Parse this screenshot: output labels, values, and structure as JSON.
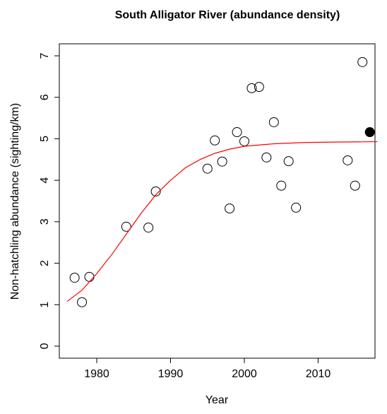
{
  "chart_data": {
    "type": "scatter",
    "title": "South Alligator River (abundance density)",
    "x_label": "Year",
    "y_label": "Non-hatchling abundance (sighting/km)",
    "xlim": [
      1974.93,
      2017.7
    ],
    "ylim": [
      -0.29,
      7.29
    ],
    "xticks": [
      1980,
      1990,
      2000,
      2010
    ],
    "yticks": [
      0,
      1,
      2,
      3,
      4,
      5,
      6,
      7
    ],
    "series": [
      {
        "color": "#000000",
        "filled": false,
        "x": [
          1977,
          1978,
          1979,
          1984,
          1987,
          1988,
          1995,
          1996,
          1997,
          1998,
          1999,
          2000,
          2001,
          2002,
          2003,
          2004,
          2005,
          2006,
          2007,
          2014,
          2015,
          2016
        ],
        "values": [
          1.65,
          1.06,
          1.67,
          2.88,
          2.86,
          3.73,
          4.28,
          4.96,
          4.45,
          3.32,
          5.16,
          4.94,
          6.22,
          6.25,
          4.55,
          5.4,
          3.87,
          4.46,
          3.34,
          4.48,
          3.87,
          6.85
        ]
      },
      {
        "color": "#000000",
        "filled": true,
        "x": [
          2017
        ],
        "values": [
          5.16
        ]
      },
      {
        "type": "line",
        "color": "#ff0000",
        "x": [
          1976,
          1978,
          1980,
          1982,
          1984,
          1986,
          1988,
          1990,
          1992,
          1994,
          1996,
          1998,
          2000,
          2004,
          2008,
          2012,
          2018
        ],
        "values": [
          1.08,
          1.35,
          1.75,
          2.2,
          2.7,
          3.2,
          3.65,
          4.0,
          4.3,
          4.5,
          4.65,
          4.75,
          4.82,
          4.88,
          4.91,
          4.92,
          4.93
        ]
      }
    ]
  }
}
